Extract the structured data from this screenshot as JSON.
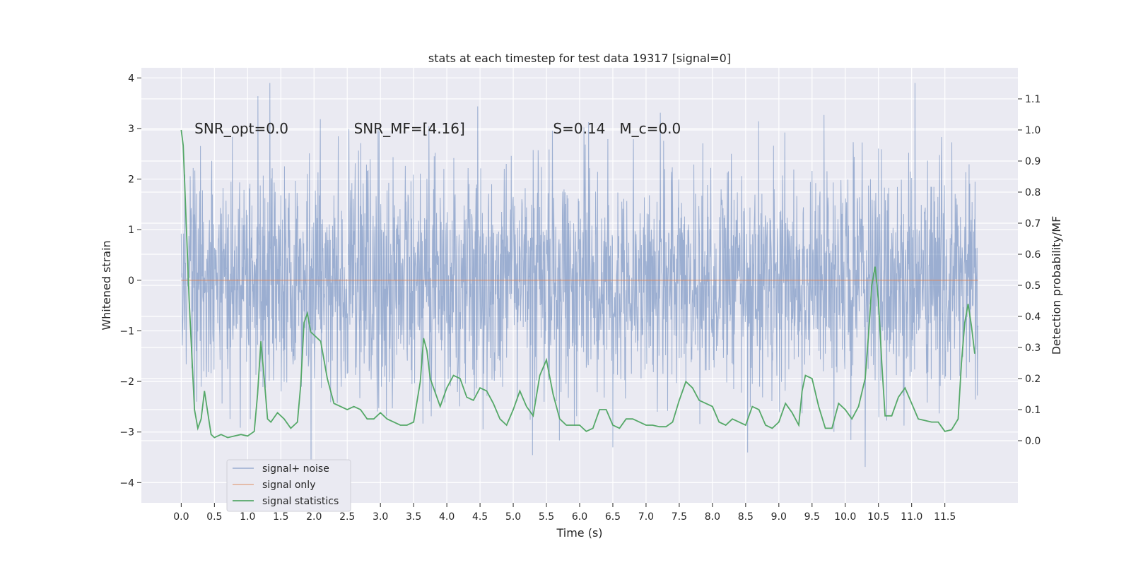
{
  "chart_data": {
    "type": "line",
    "title": "stats at each timestep for test data 19317 [signal=0]",
    "xlabel": "Time (s)",
    "ylabel_left": "Whitened strain",
    "ylabel_right": "Detection probability/MF",
    "xlim": [
      -0.6,
      12.6
    ],
    "ylim_left": [
      -4.4,
      4.2
    ],
    "ylim_right": [
      -0.2,
      1.2
    ],
    "grid": true,
    "legend_placement": "lower-left",
    "x_ticks": [
      "0.0",
      "0.5",
      "1.0",
      "1.5",
      "2.0",
      "2.5",
      "3.0",
      "3.5",
      "4.0",
      "4.5",
      "5.0",
      "5.5",
      "6.0",
      "6.5",
      "7.0",
      "7.5",
      "8.0",
      "8.5",
      "9.0",
      "9.5",
      "10.0",
      "10.5",
      "11.0",
      "11.5"
    ],
    "y_ticks_left": [
      "4",
      "3",
      "2",
      "1",
      "0",
      "−1",
      "−2",
      "−3",
      "−4"
    ],
    "y_ticks_right": [
      "1.1",
      "1.0",
      "0.9",
      "0.8",
      "0.7",
      "0.6",
      "0.5",
      "0.4",
      "0.3",
      "0.2",
      "0.1",
      "0.0"
    ],
    "annotations": [
      {
        "text": "SNR_opt=0.0",
        "x": 0.2,
        "y": 3.0
      },
      {
        "text": "SNR_MF=[4.16]",
        "x": 2.6,
        "y": 3.0
      },
      {
        "text": "S=0.14",
        "x": 5.6,
        "y": 3.0
      },
      {
        "text": "M_c=0.0",
        "x": 6.6,
        "y": 3.0
      }
    ],
    "series": [
      {
        "name": "signal+ noise",
        "color": "#4c72b0",
        "axis": "left",
        "description_of_envelope": "dense noise between about -4.0 and 3.9",
        "x_range": [
          0.0,
          12.0
        ],
        "envelope": {
          "typical_abs": 1.6,
          "max": 3.9,
          "min": -4.1
        }
      },
      {
        "name": "signal only",
        "color": "#dd8452",
        "axis": "left",
        "x": [
          0.0,
          12.0
        ],
        "y": [
          0.0,
          0.0
        ]
      },
      {
        "name": "signal statistics",
        "color": "#55a868",
        "axis": "right",
        "x": [
          0.0,
          0.03,
          0.12,
          0.2,
          0.25,
          0.3,
          0.35,
          0.4,
          0.45,
          0.5,
          0.6,
          0.7,
          0.8,
          0.9,
          1.0,
          1.1,
          1.15,
          1.2,
          1.25,
          1.3,
          1.35,
          1.45,
          1.55,
          1.65,
          1.75,
          1.8,
          1.85,
          1.9,
          1.95,
          2.0,
          2.1,
          2.2,
          2.3,
          2.4,
          2.5,
          2.6,
          2.7,
          2.8,
          2.9,
          3.0,
          3.1,
          3.2,
          3.3,
          3.4,
          3.5,
          3.6,
          3.65,
          3.7,
          3.75,
          3.8,
          3.9,
          4.0,
          4.1,
          4.2,
          4.3,
          4.4,
          4.5,
          4.6,
          4.7,
          4.8,
          4.9,
          5.0,
          5.1,
          5.2,
          5.3,
          5.4,
          5.5,
          5.6,
          5.7,
          5.8,
          5.9,
          6.0,
          6.1,
          6.2,
          6.3,
          6.4,
          6.5,
          6.6,
          6.7,
          6.8,
          6.9,
          7.0,
          7.1,
          7.2,
          7.3,
          7.4,
          7.5,
          7.6,
          7.7,
          7.8,
          7.9,
          8.0,
          8.1,
          8.2,
          8.3,
          8.4,
          8.5,
          8.6,
          8.7,
          8.8,
          8.9,
          9.0,
          9.1,
          9.2,
          9.3,
          9.35,
          9.4,
          9.5,
          9.6,
          9.7,
          9.8,
          9.9,
          10.0,
          10.1,
          10.2,
          10.3,
          10.35,
          10.4,
          10.45,
          10.5,
          10.55,
          10.6,
          10.7,
          10.8,
          10.9,
          11.0,
          11.1,
          11.2,
          11.3,
          11.4,
          11.5,
          11.6,
          11.7,
          11.75,
          11.8,
          11.85,
          11.9,
          11.95
        ],
        "y": [
          1.0,
          0.95,
          0.45,
          0.1,
          0.04,
          0.07,
          0.16,
          0.09,
          0.02,
          0.01,
          0.02,
          0.01,
          0.015,
          0.02,
          0.015,
          0.03,
          0.15,
          0.32,
          0.2,
          0.07,
          0.06,
          0.09,
          0.07,
          0.04,
          0.06,
          0.18,
          0.38,
          0.41,
          0.35,
          0.34,
          0.32,
          0.2,
          0.12,
          0.11,
          0.1,
          0.11,
          0.1,
          0.07,
          0.07,
          0.09,
          0.07,
          0.06,
          0.05,
          0.05,
          0.06,
          0.19,
          0.33,
          0.29,
          0.2,
          0.17,
          0.11,
          0.17,
          0.21,
          0.2,
          0.14,
          0.13,
          0.17,
          0.16,
          0.12,
          0.07,
          0.05,
          0.1,
          0.16,
          0.11,
          0.08,
          0.21,
          0.26,
          0.15,
          0.07,
          0.05,
          0.05,
          0.05,
          0.03,
          0.04,
          0.1,
          0.1,
          0.05,
          0.04,
          0.07,
          0.07,
          0.06,
          0.05,
          0.05,
          0.045,
          0.045,
          0.06,
          0.13,
          0.19,
          0.17,
          0.13,
          0.12,
          0.11,
          0.06,
          0.05,
          0.07,
          0.06,
          0.05,
          0.11,
          0.1,
          0.05,
          0.04,
          0.06,
          0.12,
          0.09,
          0.05,
          0.16,
          0.21,
          0.2,
          0.11,
          0.04,
          0.04,
          0.12,
          0.1,
          0.07,
          0.11,
          0.2,
          0.34,
          0.5,
          0.56,
          0.45,
          0.25,
          0.08,
          0.08,
          0.14,
          0.17,
          0.12,
          0.07,
          0.065,
          0.06,
          0.06,
          0.03,
          0.035,
          0.07,
          0.25,
          0.38,
          0.44,
          0.37,
          0.28
        ]
      }
    ]
  }
}
